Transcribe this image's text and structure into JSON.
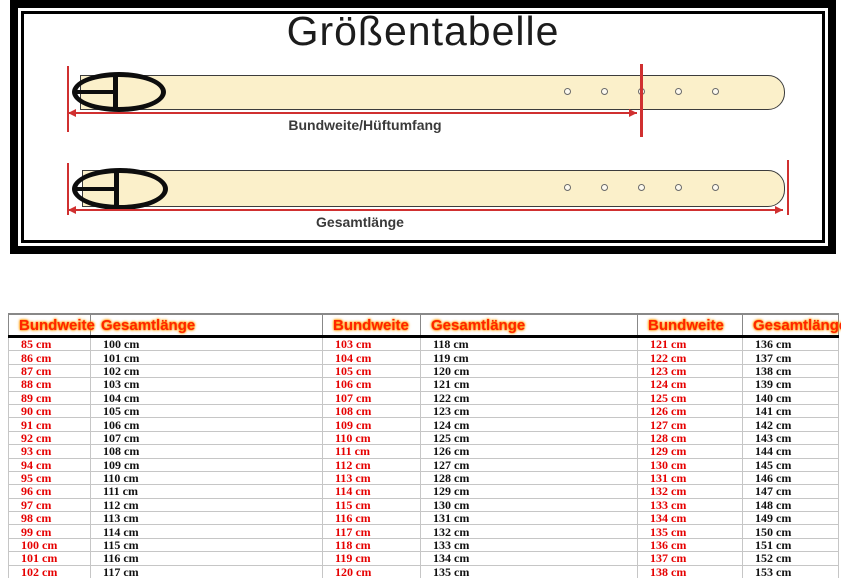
{
  "title": "Größentabelle",
  "diagram": {
    "waist_label": "Bundweite/Hüftumfang",
    "total_label": "Gesamtlänge",
    "belt_color": "#fbf0ca",
    "belt_outline_color": "#3c3c3c",
    "measure_color": "#d03030",
    "frame_color": "#000000",
    "holes_per_belt": 5
  },
  "table": {
    "headers": {
      "bundweite": "Bundweite",
      "gesamtlaenge": "Gesamtlänge"
    },
    "header_text_color": "#ff2400",
    "header_glow_color": "#ff9900",
    "bundweite_text_color": "#e60000",
    "gesamtlaenge_text_color": "#111111"
  },
  "chart_data": {
    "type": "table",
    "unit": "cm",
    "columns": [
      "Bundweite",
      "Gesamtlänge",
      "Bundweite",
      "Gesamtlänge",
      "Bundweite",
      "Gesamtlänge"
    ],
    "rows_per_block": 18,
    "blocks": [
      {
        "bundweite_cm": [
          85,
          86,
          87,
          88,
          89,
          90,
          91,
          92,
          93,
          94,
          95,
          96,
          97,
          98,
          99,
          100,
          101,
          102
        ],
        "gesamtlaenge_cm": [
          100,
          101,
          102,
          103,
          104,
          105,
          106,
          107,
          108,
          109,
          110,
          111,
          112,
          113,
          114,
          115,
          116,
          117
        ]
      },
      {
        "bundweite_cm": [
          103,
          104,
          105,
          106,
          107,
          108,
          109,
          110,
          111,
          112,
          113,
          114,
          115,
          116,
          117,
          118,
          119,
          120
        ],
        "gesamtlaenge_cm": [
          118,
          119,
          120,
          121,
          122,
          123,
          124,
          125,
          126,
          127,
          128,
          129,
          130,
          131,
          132,
          133,
          134,
          135
        ]
      },
      {
        "bundweite_cm": [
          121,
          122,
          123,
          124,
          125,
          126,
          127,
          128,
          129,
          130,
          131,
          132,
          133,
          134,
          135,
          136,
          137,
          138
        ],
        "gesamtlaenge_cm": [
          136,
          137,
          138,
          139,
          140,
          141,
          142,
          143,
          144,
          145,
          146,
          147,
          148,
          149,
          150,
          151,
          152,
          153
        ]
      }
    ]
  }
}
